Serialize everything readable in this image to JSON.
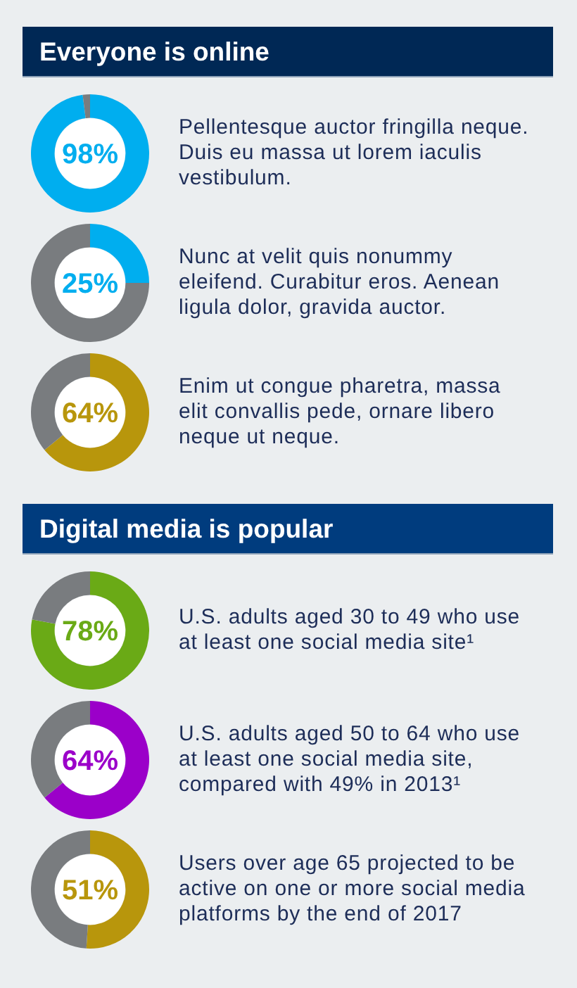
{
  "chart_data": [
    {
      "type": "donut",
      "title": "Everyone is online",
      "categories": [
        null,
        null
      ],
      "values": [
        98,
        2
      ],
      "colors": [
        "#00aeef",
        "#797c7f"
      ],
      "annotations": [
        "98%",
        "Pellentesque auctor fringilla neque. Duis eu massa ut lorem iaculis vestibulum."
      ]
    },
    {
      "type": "donut",
      "categories": [
        null,
        null
      ],
      "values": [
        25,
        75
      ],
      "colors": [
        "#00aeef",
        "#797c7f"
      ],
      "annotations": [
        "25%",
        "Nunc at velit quis nonummy eleifend. Curabitur eros. Aenean ligula dolor, gravida auctor."
      ]
    },
    {
      "type": "donut",
      "categories": [
        null,
        null
      ],
      "values": [
        64,
        36
      ],
      "colors": [
        "#b8960c",
        "#797c7f"
      ],
      "annotations": [
        "64%",
        "Enim ut congue pharetra, massa elit convallis pede, ornare libero neque ut neque."
      ]
    },
    {
      "type": "donut",
      "title": "Digital media is popular",
      "categories": [
        null,
        null
      ],
      "values": [
        78,
        22
      ],
      "colors": [
        "#6aaa16",
        "#797c7f"
      ],
      "annotations": [
        "78%",
        "U.S. adults aged 30 to 49 who use at least one social media site¹"
      ]
    },
    {
      "type": "donut",
      "categories": [
        null,
        null
      ],
      "values": [
        64,
        36
      ],
      "colors": [
        "#9b00c9",
        "#797c7f"
      ],
      "annotations": [
        "64%",
        "U.S. adults aged 50 to 64 who use at least one social media site, compared with 49% in 2013¹"
      ]
    },
    {
      "type": "donut",
      "categories": [
        null,
        null
      ],
      "values": [
        51,
        49
      ],
      "colors": [
        "#b8960c",
        "#797c7f"
      ],
      "annotations": [
        "51%",
        "Users over age 65 projected to be active on one or more social media platforms by the end of 2017"
      ]
    }
  ]
}
